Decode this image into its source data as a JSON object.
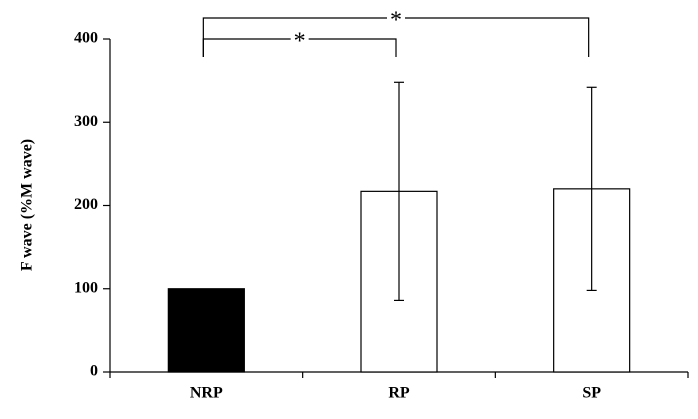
{
  "chart_data": {
    "type": "bar",
    "y_label": "F wave (%M wave)",
    "categories": [
      "NRP",
      "RP",
      "SP"
    ],
    "values": [
      100,
      217,
      220
    ],
    "errors": [
      null,
      131,
      122
    ],
    "colors": [
      "#000000",
      "#ffffff",
      "#ffffff"
    ],
    "ylim": [
      0,
      400
    ],
    "yticks": [
      0,
      100,
      200,
      300,
      400
    ],
    "annotations": [
      "*",
      "*"
    ]
  }
}
